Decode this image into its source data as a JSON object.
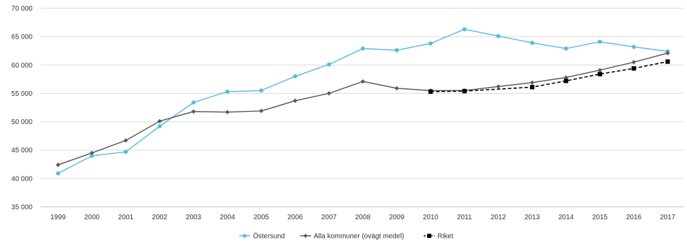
{
  "chart_data": {
    "type": "line",
    "categories": [
      "1999",
      "2000",
      "2001",
      "2002",
      "2003",
      "2004",
      "2005",
      "2006",
      "2007",
      "2008",
      "2009",
      "2010",
      "2011",
      "2012",
      "2013",
      "2014",
      "2015",
      "2016",
      "2017"
    ],
    "ylim": [
      35000,
      70000
    ],
    "yticks": [
      35000,
      40000,
      45000,
      50000,
      55000,
      60000,
      65000,
      70000
    ],
    "ytick_labels": [
      "35 000",
      "40 000",
      "45 000",
      "50 000",
      "55 000",
      "60 000",
      "65 000",
      "70 000"
    ],
    "grid": "horizontal",
    "legend_position": "bottom",
    "series": [
      {
        "name": "Östersund",
        "color": "#5bbbe0",
        "marker": "circle",
        "dashed": false,
        "values": [
          40900,
          44000,
          44700,
          49200,
          53400,
          55300,
          55500,
          58000,
          60100,
          62900,
          62600,
          63800,
          66300,
          65100,
          63900,
          62900,
          64100,
          63200,
          62400
        ]
      },
      {
        "name": "Alla kommuner (ovägt medel)",
        "color": "#595959",
        "marker": "diamond",
        "dashed": false,
        "values": [
          42400,
          44500,
          46700,
          50100,
          51800,
          51700,
          51900,
          53700,
          55000,
          57100,
          55900,
          55500,
          55500,
          56200,
          56900,
          57800,
          59100,
          60500,
          62100
        ]
      },
      {
        "name": "Riket",
        "color": "#000000",
        "marker": "square",
        "dashed": true,
        "values": [
          null,
          null,
          null,
          null,
          null,
          null,
          null,
          null,
          null,
          null,
          null,
          55300,
          55400,
          null,
          56100,
          57200,
          58400,
          59400,
          60600
        ]
      }
    ]
  }
}
